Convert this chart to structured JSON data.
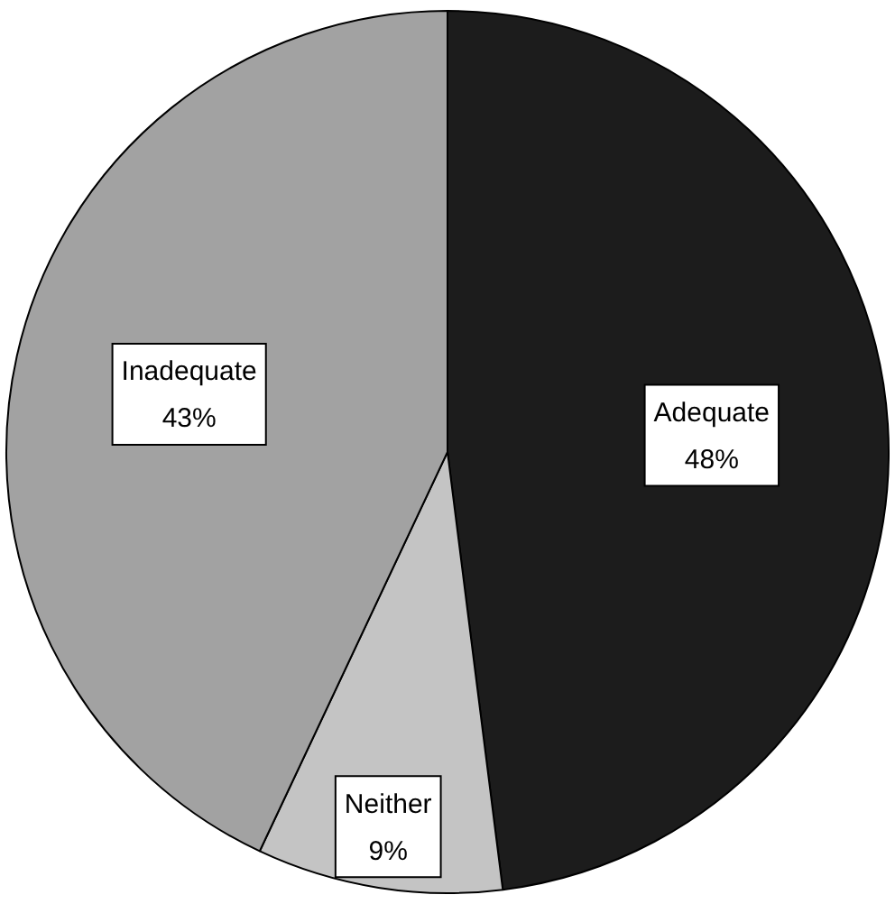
{
  "chart_data": {
    "type": "pie",
    "categories": [
      "Adequate",
      "Neither",
      "Inadequate"
    ],
    "values": [
      48,
      9,
      43
    ],
    "value_labels": [
      "48%",
      "9%",
      "43%"
    ],
    "colors": [
      "#1c1c1c",
      "#c4c4c4",
      "#a2a2a2"
    ],
    "legend": false
  }
}
